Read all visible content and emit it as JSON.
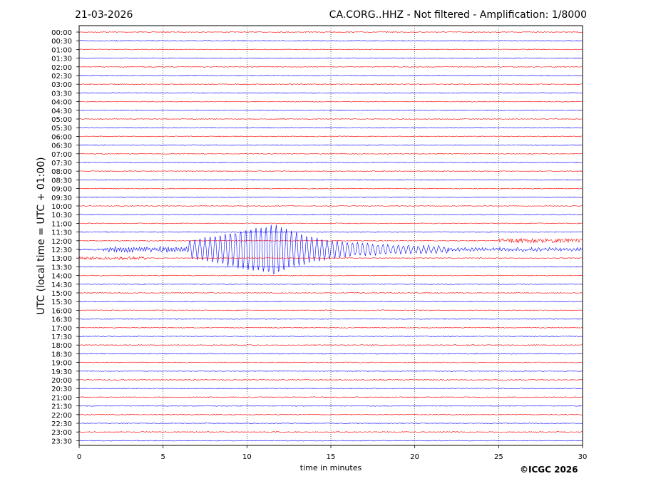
{
  "header": {
    "date": "21-03-2026",
    "title": "CA.CORG..HHZ - Not filtered - Amplification: 1/8000"
  },
  "copyright": "©ICGC 2026",
  "colors": {
    "trace_a": "#ff0000",
    "trace_b": "#0000ff",
    "grid": "#000000"
  },
  "chart_data": {
    "type": "line",
    "xlabel": "time in minutes",
    "ylabel": "UTC (local time = UTC + 01:00)",
    "xlim": [
      0,
      30
    ],
    "x_ticks": [
      "0",
      "5",
      "10",
      "15",
      "20",
      "25",
      "30"
    ],
    "grid": "vertical dotted at 5-minute ticks",
    "rows": [
      "00:00",
      "00:30",
      "01:00",
      "01:30",
      "02:00",
      "02:30",
      "03:00",
      "03:30",
      "04:00",
      "04:30",
      "05:00",
      "05:30",
      "06:00",
      "06:30",
      "07:00",
      "07:30",
      "08:00",
      "08:30",
      "09:00",
      "09:30",
      "10:00",
      "10:30",
      "11:00",
      "11:30",
      "12:00",
      "12:30",
      "13:00",
      "13:30",
      "14:00",
      "14:30",
      "15:00",
      "15:30",
      "16:00",
      "16:30",
      "17:00",
      "17:30",
      "18:00",
      "18:30",
      "19:00",
      "19:30",
      "20:00",
      "20:30",
      "21:00",
      "21:30",
      "22:00",
      "22:30",
      "23:00",
      "23:30"
    ],
    "row_colors": "alternating red / blue starting with red at 00:00",
    "events": [
      {
        "row": "12:30",
        "start_min": 6.5,
        "end_min": 22,
        "peak_min": 11.5,
        "description": "large-amplitude wave train"
      },
      {
        "row": "12:00",
        "start_min": 25,
        "end_min": 30,
        "description": "increased noise"
      },
      {
        "row": "12:30",
        "start_min": 1.4,
        "end_min": 6.5,
        "description": "small onset"
      }
    ]
  }
}
